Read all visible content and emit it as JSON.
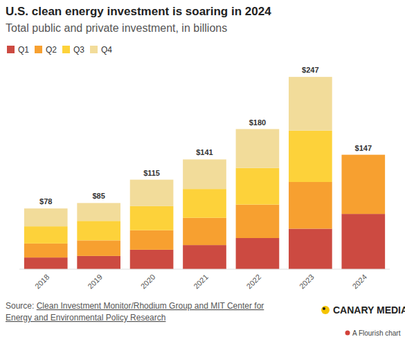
{
  "chart_data": {
    "type": "bar",
    "title": "U.S. clean energy investment is soaring in 2024",
    "subtitle": "Total public and private investment, in billions",
    "categories": [
      "2018",
      "2019",
      "2020",
      "2021",
      "2022",
      "2023",
      "2024"
    ],
    "series": [
      {
        "name": "Q1",
        "color": "#cc4a41",
        "values": [
          15,
          17,
          25,
          31,
          40,
          52,
          71
        ]
      },
      {
        "name": "Q2",
        "color": "#f7a030",
        "values": [
          18,
          20,
          25,
          35,
          43,
          60,
          76
        ]
      },
      {
        "name": "Q3",
        "color": "#fdd23a",
        "values": [
          22,
          25,
          31,
          37,
          47,
          66,
          null
        ]
      },
      {
        "name": "Q4",
        "color": "#f2dc9a",
        "values": [
          23,
          23,
          34,
          38,
          50,
          69,
          null
        ]
      }
    ],
    "totals": [
      78,
      85,
      115,
      141,
      180,
      247,
      147
    ],
    "total_labels": [
      "$78",
      "$85",
      "$115",
      "$141",
      "$180",
      "$247",
      "$147"
    ],
    "ylim": [
      0,
      260
    ],
    "stacked": true,
    "legend": "top-left",
    "grid": false,
    "tick_labels": "x",
    "source_label": "Source:",
    "source": "Clean Investment Monitor/Rhodium Group and MIT Center for Energy and Environmental Policy Research",
    "credit": "CANARY MEDIA",
    "footer": "A Flourish chart"
  }
}
